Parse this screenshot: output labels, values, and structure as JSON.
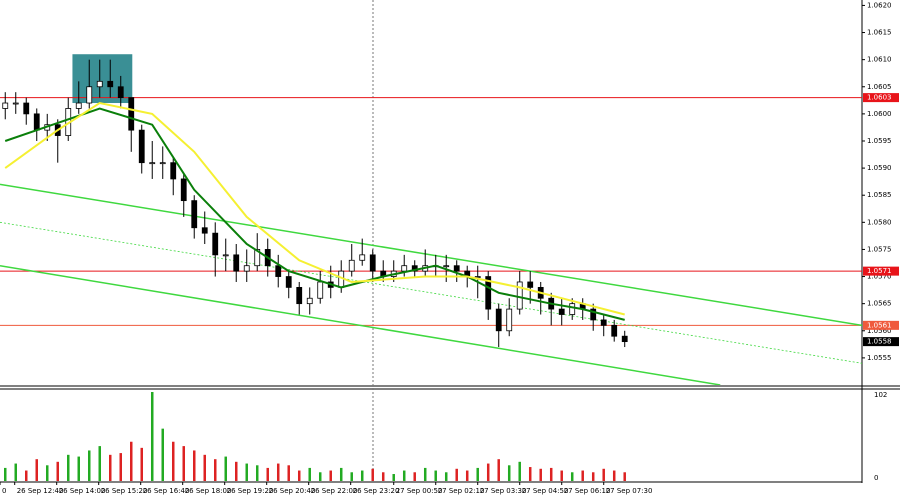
{
  "chart_data": {
    "type": "candlestick",
    "open": [
      1.0601,
      1.0602,
      1.0602,
      1.06,
      1.0597,
      1.0598,
      1.0596,
      1.0601,
      1.0602,
      1.0605,
      1.0606,
      1.0605,
      1.0603,
      1.0597,
      1.0591,
      1.0591,
      1.0591,
      1.0588,
      1.0584,
      1.0579,
      1.0578,
      1.0574,
      1.0574,
      1.0571,
      1.0572,
      1.0575,
      1.0572,
      1.057,
      1.0568,
      1.0565,
      1.0566,
      1.0569,
      1.0568,
      1.0571,
      1.0573,
      1.0574,
      1.0571,
      1.057,
      1.0571,
      1.0572,
      1.0571,
      1.0572,
      1.0572,
      1.0572,
      1.0571,
      1.057,
      1.057,
      1.0564,
      1.056,
      1.0564,
      1.0569,
      1.0568,
      1.0566,
      1.0564,
      1.0563,
      1.0565,
      1.0564,
      1.0562,
      1.0561,
      1.0559
    ],
    "high": [
      1.0604,
      1.0604,
      1.0603,
      1.0601,
      1.06,
      1.0599,
      1.0603,
      1.0606,
      1.061,
      1.061,
      1.061,
      1.0607,
      1.0603,
      1.0598,
      1.0595,
      1.0594,
      1.0592,
      1.0589,
      1.0585,
      1.0582,
      1.058,
      1.0577,
      1.0576,
      1.0575,
      1.0578,
      1.0577,
      1.0574,
      1.0571,
      1.0569,
      1.0568,
      1.0571,
      1.0572,
      1.0573,
      1.0576,
      1.0577,
      1.0575,
      1.0573,
      1.0573,
      1.0574,
      1.0573,
      1.0575,
      1.0574,
      1.0574,
      1.0573,
      1.0572,
      1.0572,
      1.0571,
      1.0565,
      1.0566,
      1.0571,
      1.0571,
      1.0569,
      1.0567,
      1.0566,
      1.0566,
      1.0566,
      1.0565,
      1.0563,
      1.0562,
      1.056
    ],
    "low": [
      1.0599,
      1.06,
      1.0598,
      1.0595,
      1.0595,
      1.0591,
      1.0595,
      1.06,
      1.0601,
      1.0603,
      1.0603,
      1.0601,
      1.0593,
      1.0589,
      1.0588,
      1.0588,
      1.0585,
      1.0581,
      1.0577,
      1.0576,
      1.057,
      1.0571,
      1.0569,
      1.0569,
      1.0571,
      1.057,
      1.0568,
      1.0566,
      1.0563,
      1.0563,
      1.0565,
      1.0566,
      1.0567,
      1.057,
      1.0572,
      1.0569,
      1.0569,
      1.0569,
      1.057,
      1.057,
      1.057,
      1.057,
      1.0569,
      1.0569,
      1.0568,
      1.0566,
      1.0562,
      1.0557,
      1.0559,
      1.0563,
      1.0565,
      1.0563,
      1.0561,
      1.0561,
      1.0562,
      1.0562,
      1.056,
      1.0559,
      1.0558,
      1.0557
    ],
    "close": [
      1.0602,
      1.0602,
      1.06,
      1.0597,
      1.0598,
      1.0596,
      1.0601,
      1.0602,
      1.0605,
      1.0606,
      1.0605,
      1.0603,
      1.0597,
      1.0591,
      1.0591,
      1.0591,
      1.0588,
      1.0584,
      1.0579,
      1.0578,
      1.0574,
      1.0574,
      1.0571,
      1.0572,
      1.0575,
      1.0572,
      1.057,
      1.0568,
      1.0565,
      1.0566,
      1.0569,
      1.0568,
      1.0571,
      1.0573,
      1.0574,
      1.0571,
      1.057,
      1.0571,
      1.0572,
      1.0571,
      1.0572,
      1.0572,
      1.0572,
      1.0571,
      1.057,
      1.057,
      1.0564,
      1.056,
      1.0564,
      1.0569,
      1.0568,
      1.0566,
      1.0564,
      1.0563,
      1.0565,
      1.0564,
      1.0562,
      1.0561,
      1.0559,
      1.0558
    ],
    "up_color": "#ffffff",
    "down_color": "#000000",
    "xlim": [
      -0.5,
      81.6
    ],
    "xticks": [
      {
        "value": -0.5,
        "label": "0"
      },
      {
        "value": 0.9,
        "label": "26 Sep 12:40"
      },
      {
        "value": 4.9,
        "label": "26 Sep 14:00"
      },
      {
        "value": 8.9,
        "label": "26 Sep 15:20"
      },
      {
        "value": 12.9,
        "label": "26 Sep 16:40"
      },
      {
        "value": 16.9,
        "label": "26 Sep 18:00"
      },
      {
        "value": 20.9,
        "label": "26 Sep 19:20"
      },
      {
        "value": 24.9,
        "label": "26 Sep 20:40"
      },
      {
        "value": 28.9,
        "label": "26 Sep 22:00"
      },
      {
        "value": 32.9,
        "label": "26 Sep 23:20"
      },
      {
        "value": 37,
        "label": "27 Sep 00:50"
      },
      {
        "value": 41,
        "label": "27 Sep 02:10"
      },
      {
        "value": 45,
        "label": "27 Sep 03:30"
      },
      {
        "value": 49,
        "label": "27 Sep 04:50"
      },
      {
        "value": 53,
        "label": "27 Sep 06:10"
      },
      {
        "value": 57,
        "label": "27 Sep 07:30"
      }
    ],
    "ylim": [
      1.055,
      1.0621
    ],
    "yticks": [
      1.0555,
      {
        "value": 1.056,
        "label": "1.0560"
      },
      1.0565,
      {
        "value": 1.057,
        "label": "1.0570"
      },
      1.0575,
      {
        "value": 1.058,
        "label": "1.0580"
      },
      1.0585,
      {
        "value": 1.059,
        "label": "1.0590"
      },
      1.0595,
      {
        "value": 1.06,
        "label": "1.0600"
      },
      1.0605,
      {
        "value": 1.061,
        "label": "1.0610"
      },
      1.0615,
      {
        "value": 1.062,
        "label": "1.0620"
      }
    ],
    "levels": [
      {
        "value": 1.0603,
        "label": "1.0603",
        "color": "#e8141a",
        "line": true
      },
      {
        "value": 1.0571,
        "label": "1.0571",
        "color": "#e8141a",
        "line": true
      },
      {
        "value": 1.0561,
        "label": "1.0561",
        "color": "#ef5a3c",
        "line": true
      },
      {
        "value": 1.0558,
        "label": "1.0558",
        "color": "#000000",
        "line": false
      }
    ],
    "trendlines": [
      {
        "x": [
          -0.5,
          81.6
        ],
        "y": [
          1.0587,
          1.0561
        ],
        "color": "#3fd83f",
        "dash": false
      },
      {
        "x": [
          -0.5,
          68.1
        ],
        "y": [
          1.0572,
          1.055
        ],
        "color": "#3fd83f",
        "dash": false
      },
      {
        "x": [
          -0.5,
          81.6
        ],
        "y": [
          1.058,
          1.0554
        ],
        "color": "#3fd83f",
        "dash": true
      }
    ],
    "zones": [
      {
        "x": [
          6.4,
          12.1
        ],
        "y": [
          1.0602,
          1.0611
        ],
        "color": "#3a8f95"
      }
    ],
    "indicators": [
      {
        "color": "#0a7f0a",
        "x": [
          0,
          9,
          14,
          18,
          23,
          27,
          32,
          36,
          41,
          44,
          47,
          52,
          55,
          59
        ],
        "values": [
          1.0595,
          1.0601,
          1.0598,
          1.0586,
          1.0576,
          1.0571,
          1.0568,
          1.057,
          1.0572,
          1.057,
          1.0567,
          1.0565,
          1.0564,
          1.0562
        ]
      },
      {
        "color": "#f5f032",
        "x": [
          0,
          5,
          9,
          14,
          18,
          23,
          28,
          33,
          40,
          44,
          49,
          53,
          59
        ],
        "values": [
          1.059,
          1.0597,
          1.0602,
          1.06,
          1.0593,
          1.0581,
          1.0573,
          1.0569,
          1.057,
          1.057,
          1.0568,
          1.0566,
          1.0563
        ]
      }
    ],
    "volume": {
      "values": [
        15,
        20,
        12,
        25,
        18,
        22,
        30,
        28,
        35,
        40,
        30,
        32,
        45,
        38,
        102,
        60,
        45,
        40,
        35,
        30,
        25,
        28,
        22,
        20,
        18,
        15,
        20,
        18,
        12,
        15,
        10,
        12,
        15,
        10,
        12,
        14,
        10,
        8,
        12,
        10,
        15,
        12,
        10,
        14,
        12,
        15,
        20,
        25,
        18,
        22,
        16,
        14,
        15,
        12,
        10,
        12,
        10,
        14,
        12,
        10
      ],
      "ylim": [
        0,
        102
      ],
      "yticks": [
        0,
        102
      ],
      "up_color": "#22aa22",
      "down_color": "#dd2222"
    }
  }
}
